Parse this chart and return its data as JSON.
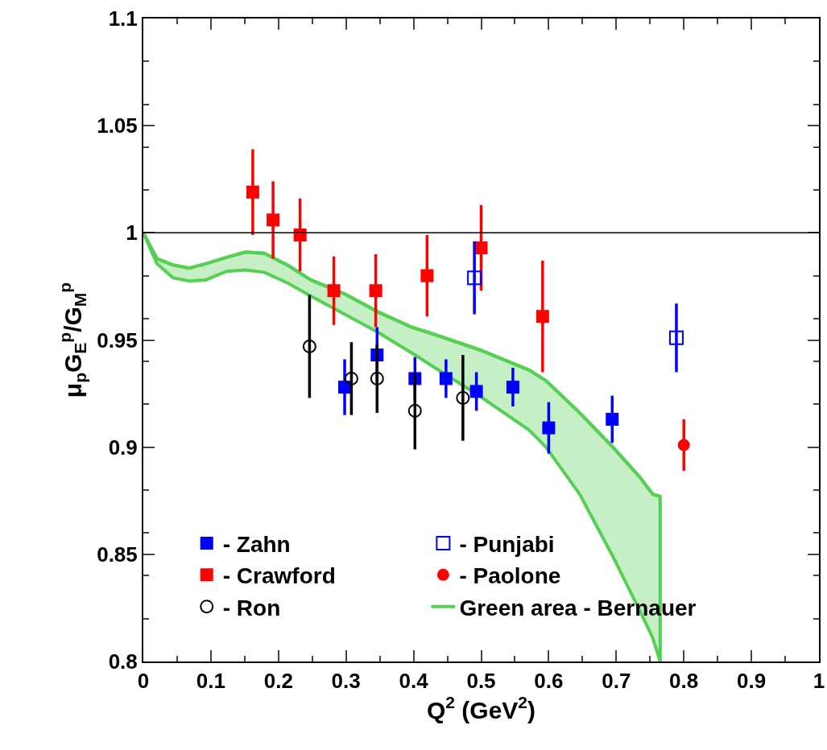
{
  "chart_data": {
    "type": "scatter",
    "xlabel": "Q$^{2}$ (GeV$^{2}$)",
    "ylabel": "μ$_{p}$G$_{E}$$^{p}$/G$_{M}$$^{p}$",
    "xlim": [
      0,
      1
    ],
    "xticks": [
      0,
      0.1,
      0.2,
      0.3,
      0.4,
      0.5,
      0.6,
      0.7,
      0.8,
      0.9,
      1
    ],
    "ylim": [
      0.8,
      1.1
    ],
    "yticks": [
      0.8,
      0.85,
      0.9,
      0.95,
      1,
      1.05,
      1.1
    ],
    "grid": false,
    "legend": "bottom left",
    "ref_lines": [
      {
        "axis": "y",
        "value": 1,
        "color": "#000000"
      }
    ],
    "series": [
      {
        "name": "- Zahn",
        "marker": "square",
        "color": "#0000ff",
        "x": [
          0.298,
          0.346,
          0.402,
          0.448,
          0.493,
          0.547,
          0.6,
          0.694
        ],
        "values": [
          0.928,
          0.943,
          0.932,
          0.932,
          0.926,
          0.928,
          0.909,
          0.913
        ],
        "errors": [
          0.013,
          0.013,
          0.01,
          0.009,
          0.009,
          0.009,
          0.012,
          0.011
        ]
      },
      {
        "name": "- Crawford",
        "marker": "square",
        "color": "#ff0000",
        "x": [
          0.162,
          0.192,
          0.232,
          0.282,
          0.344,
          0.42,
          0.5,
          0.591
        ],
        "values": [
          1.019,
          1.006,
          0.999,
          0.973,
          0.973,
          0.98,
          0.993,
          0.961
        ],
        "errors": [
          0.02,
          0.018,
          0.017,
          0.016,
          0.017,
          0.019,
          0.02,
          0.026
        ]
      },
      {
        "name": "- Ron",
        "marker": "circle-open",
        "color": "#000000",
        "x": [
          0.246,
          0.308,
          0.346,
          0.402,
          0.473
        ],
        "values": [
          0.947,
          0.932,
          0.932,
          0.917,
          0.923
        ],
        "errors": [
          0.024,
          0.017,
          0.016,
          0.018,
          0.02
        ]
      },
      {
        "name": "- Punjabi",
        "marker": "square-open",
        "color": "#0000ff",
        "x": [
          0.49,
          0.789
        ],
        "values": [
          0.979,
          0.951
        ],
        "errors": [
          0.017,
          0.016
        ]
      },
      {
        "name": "- Paolone",
        "marker": "circle",
        "color": "#ff0000",
        "x": [
          0.8
        ],
        "values": [
          0.901
        ],
        "errors": [
          0.012
        ]
      },
      {
        "name": "Green area - Bernauer",
        "type": "line",
        "color": "#55d055",
        "upper": [
          1,
          0.988,
          0.985,
          0.9835,
          0.9855,
          0.9885,
          0.991,
          0.9905,
          0.9846,
          0.978,
          0.9715,
          0.963,
          0.956,
          0.953,
          0.9455,
          0.936,
          0.931,
          0.916,
          0.9,
          0.886,
          0.878,
          0.877
        ],
        "x": [
          0,
          0.02,
          0.044,
          0.068,
          0.092,
          0.123,
          0.151,
          0.179,
          0.215,
          0.248,
          0.298,
          0.348,
          0.397,
          0.427,
          0.497,
          0.571,
          0.596,
          0.646,
          0.695,
          0.735,
          0.754,
          0.765
        ],
        "values": [
          1,
          0.988,
          0.985,
          0.9835,
          0.9855,
          0.9885,
          0.991,
          0.9905,
          0.9846,
          0.978,
          0.9715,
          0.963,
          0.956,
          0.953,
          0.9455,
          0.936,
          0.931,
          0.916,
          0.9,
          0.886,
          0.878,
          0.877
        ],
        "lower": [
          1,
          0.9857,
          0.979,
          0.9775,
          0.978,
          0.982,
          0.9827,
          0.9816,
          0.9764,
          0.9705,
          0.962,
          0.9535,
          0.944,
          0.938,
          0.924,
          0.908,
          0.9,
          0.878,
          0.849,
          0.8236,
          0.811,
          0.8
        ]
      }
    ]
  }
}
